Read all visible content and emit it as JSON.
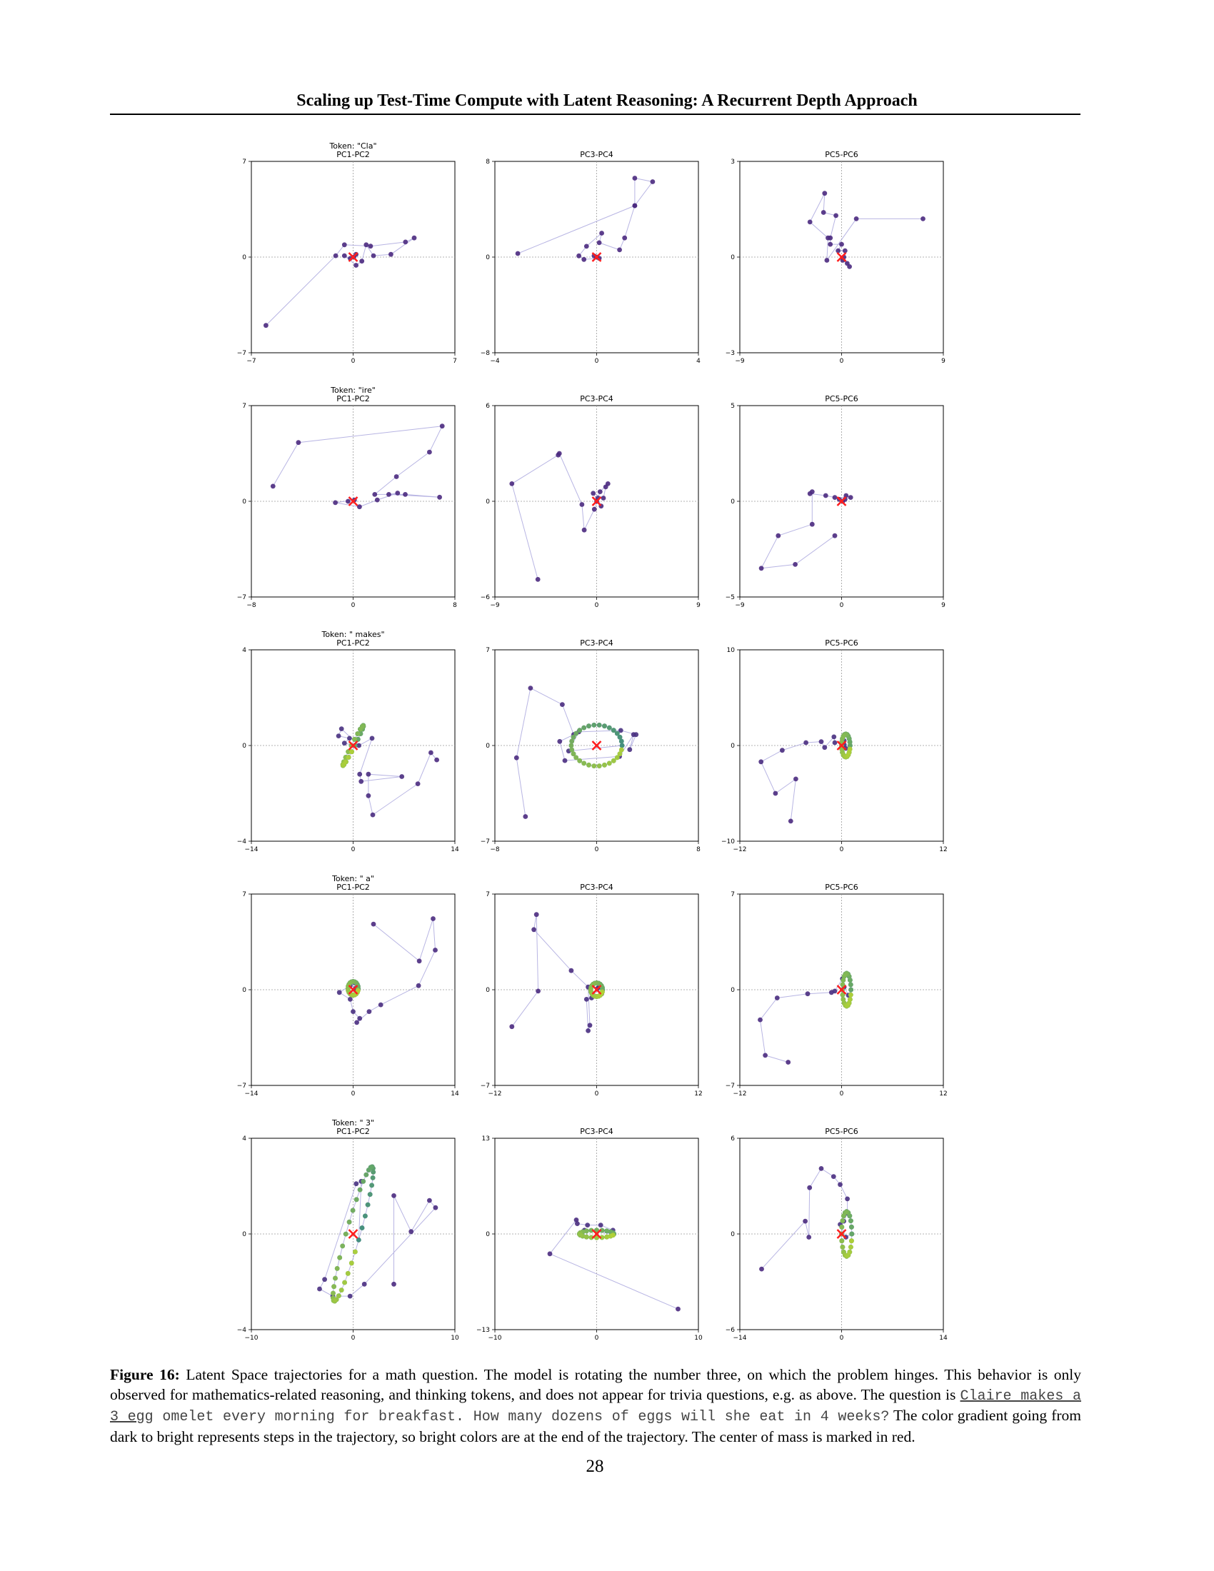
{
  "header": {
    "title": "Scaling up Test-Time Compute with Latent Reasoning: A Recurrent Depth Approach"
  },
  "colors": {
    "line": "#a6a3dc",
    "early": "#4b2a80",
    "late": "#b5d334",
    "center": "#ff1e1e",
    "grid": "#9a9a9a"
  },
  "chart_data": [
    {
      "type": "scatter",
      "title": "Token: \"Cla\"\nPC1-PC2",
      "xlim": [
        -7,
        7
      ],
      "ylim": [
        -7,
        7
      ],
      "xticks": [
        "−7",
        "0",
        "7"
      ],
      "yticks": [
        "−7",
        "0",
        "7"
      ],
      "center": [
        0,
        0
      ],
      "trajectory": [
        [
          -6,
          -5
        ],
        [
          -1.2,
          0.1
        ],
        [
          -0.6,
          0.9
        ],
        [
          1.2,
          0.8
        ],
        [
          3.6,
          1.1
        ],
        [
          4.2,
          1.4
        ],
        [
          2.6,
          0.2
        ],
        [
          1.4,
          0.1
        ],
        [
          0.9,
          0.9
        ],
        [
          0.6,
          -0.3
        ],
        [
          0.2,
          -0.6
        ],
        [
          -0.6,
          0.1
        ],
        [
          -0.2,
          -0.1
        ],
        [
          0.2,
          0.2
        ],
        [
          0.05,
          0.0
        ]
      ]
    },
    {
      "type": "scatter",
      "title": "PC3-PC4",
      "xlim": [
        -4,
        4
      ],
      "ylim": [
        -8,
        8
      ],
      "xticks": [
        "−4",
        "0",
        "4"
      ],
      "yticks": [
        "−8",
        "0",
        "8"
      ],
      "center": [
        0,
        0
      ],
      "trajectory": [
        [
          -3.1,
          0.3
        ],
        [
          1.5,
          4.3
        ],
        [
          1.5,
          6.6
        ],
        [
          2.2,
          6.3
        ],
        [
          1.5,
          4.3
        ],
        [
          1.1,
          1.6
        ],
        [
          0.9,
          0.6
        ],
        [
          0.1,
          1.2
        ],
        [
          0.2,
          2.0
        ],
        [
          -0.4,
          0.9
        ],
        [
          -0.7,
          0.1
        ],
        [
          -0.5,
          -0.2
        ],
        [
          0.1,
          -0.1
        ],
        [
          -0.1,
          0.1
        ],
        [
          0.0,
          0.0
        ]
      ]
    },
    {
      "type": "scatter",
      "title": "PC5-PC6",
      "xlim": [
        -9,
        9
      ],
      "ylim": [
        -3,
        3
      ],
      "xticks": [
        "−9",
        "0",
        "9"
      ],
      "yticks": [
        "−3",
        "0",
        "3"
      ],
      "center": [
        0,
        0
      ],
      "trajectory": [
        [
          7.2,
          1.2
        ],
        [
          1.3,
          1.2
        ],
        [
          -1.3,
          -0.1
        ],
        [
          -1.2,
          0.6
        ],
        [
          -2.8,
          1.1
        ],
        [
          -1.5,
          2.0
        ],
        [
          -1.6,
          1.4
        ],
        [
          -0.5,
          1.3
        ],
        [
          -1.0,
          0.6
        ],
        [
          -1.0,
          0.4
        ],
        [
          0.0,
          0.4
        ],
        [
          -0.3,
          0.2
        ],
        [
          0.3,
          0.2
        ],
        [
          0.1,
          -0.1
        ],
        [
          0.5,
          -0.2
        ],
        [
          0.7,
          -0.3
        ],
        [
          0.2,
          0.0
        ]
      ]
    },
    {
      "type": "scatter",
      "title": "Token: \"ire\"\nPC1-PC2",
      "xlim": [
        -8,
        8
      ],
      "ylim": [
        -7,
        7
      ],
      "xticks": [
        "−8",
        "0",
        "8"
      ],
      "yticks": [
        "−7",
        "0",
        "7"
      ],
      "center": [
        0,
        0
      ],
      "trajectory": [
        [
          -6.3,
          1.1
        ],
        [
          -4.3,
          4.3
        ],
        [
          7.0,
          5.5
        ],
        [
          6.0,
          3.6
        ],
        [
          3.4,
          1.8
        ],
        [
          1.7,
          0.5
        ],
        [
          4.1,
          0.5
        ],
        [
          6.8,
          0.3
        ],
        [
          2.8,
          0.5
        ],
        [
          3.5,
          0.6
        ],
        [
          1.9,
          0.1
        ],
        [
          0.5,
          -0.4
        ],
        [
          -1.4,
          -0.1
        ],
        [
          0.1,
          0.1
        ],
        [
          -0.4,
          0.0
        ]
      ]
    },
    {
      "type": "scatter",
      "title": "PC3-PC4",
      "xlim": [
        -9,
        9
      ],
      "ylim": [
        -6,
        6
      ],
      "xticks": [
        "−9",
        "0",
        "9"
      ],
      "yticks": [
        "−6",
        "0",
        "6"
      ],
      "center": [
        0,
        0
      ],
      "trajectory": [
        [
          -5.2,
          -4.9
        ],
        [
          -7.5,
          1.1
        ],
        [
          -3.4,
          2.9
        ],
        [
          -3.3,
          3.0
        ],
        [
          -1.3,
          -0.2
        ],
        [
          -1.1,
          -1.8
        ],
        [
          -0.2,
          -0.5
        ],
        [
          0.3,
          0.6
        ],
        [
          1.0,
          1.1
        ],
        [
          0.8,
          0.9
        ],
        [
          0.6,
          0.2
        ],
        [
          -0.3,
          0.5
        ],
        [
          0.4,
          -0.3
        ],
        [
          0.1,
          0.2
        ],
        [
          0.0,
          0.0
        ]
      ]
    },
    {
      "type": "scatter",
      "title": "PC5-PC6",
      "xlim": [
        -9,
        9
      ],
      "ylim": [
        -5,
        5
      ],
      "xticks": [
        "−9",
        "0",
        "9"
      ],
      "yticks": [
        "−5",
        "0",
        "5"
      ],
      "center": [
        0,
        0
      ],
      "trajectory": [
        [
          -0.6,
          -1.8
        ],
        [
          -4.1,
          -3.3
        ],
        [
          -7.1,
          -3.5
        ],
        [
          -5.6,
          -1.8
        ],
        [
          -2.6,
          -1.2
        ],
        [
          -2.6,
          0.5
        ],
        [
          -2.8,
          0.4
        ],
        [
          -1.4,
          0.3
        ],
        [
          -0.6,
          0.2
        ],
        [
          -0.2,
          0.1
        ],
        [
          0.4,
          0.3
        ],
        [
          0.8,
          0.2
        ],
        [
          0.3,
          0.1
        ],
        [
          0.1,
          0.0
        ]
      ]
    },
    {
      "type": "scatter",
      "title": "Token: \" makes\"\nPC1-PC2",
      "xlim": [
        -14,
        14
      ],
      "ylim": [
        -4,
        4
      ],
      "xticks": [
        "−14",
        "0",
        "14"
      ],
      "yticks": [
        "−4",
        "0",
        "4"
      ],
      "center": [
        0,
        0
      ],
      "trajectory": [
        [
          11.5,
          -0.6
        ],
        [
          10.7,
          -0.3
        ],
        [
          8.9,
          -1.6
        ],
        [
          2.7,
          -2.9
        ],
        [
          2.1,
          -2.1
        ],
        [
          2.1,
          -1.2
        ],
        [
          6.7,
          -1.3
        ],
        [
          1.1,
          -1.5
        ],
        [
          0.9,
          -1.2
        ],
        [
          2.6,
          0.3
        ],
        [
          0.8,
          0.0
        ],
        [
          -1.6,
          0.7
        ],
        [
          -2.0,
          0.4
        ],
        [
          -0.5,
          0.3
        ],
        [
          -1.2,
          0.1
        ]
      ],
      "orbit": {
        "cx": 0,
        "cy": 0,
        "rx": 0.9,
        "ry": 2.0,
        "rot": 0,
        "kind": "segment",
        "len": 2.2,
        "angle": -58
      }
    },
    {
      "type": "scatter",
      "title": "PC3-PC4",
      "xlim": [
        -8,
        8
      ],
      "ylim": [
        -7,
        7
      ],
      "xticks": [
        "−8",
        "0",
        "8"
      ],
      "yticks": [
        "−7",
        "0",
        "7"
      ],
      "center": [
        0,
        0
      ],
      "trajectory": [
        [
          -5.6,
          -5.2
        ],
        [
          -6.3,
          -0.9
        ],
        [
          -5.2,
          4.2
        ],
        [
          -2.7,
          3.0
        ],
        [
          -1.8,
          0.8
        ],
        [
          -2.9,
          0.3
        ],
        [
          -2.5,
          -1.1
        ],
        [
          1.8,
          -0.8
        ],
        [
          2.9,
          0.8
        ],
        [
          2.6,
          -0.3
        ],
        [
          3.1,
          0.8
        ],
        [
          1.9,
          1.1
        ],
        [
          -1.4,
          1.0
        ],
        [
          -2.2,
          -0.4
        ]
      ],
      "orbit": {
        "cx": 0,
        "cy": 0,
        "rx": 2.0,
        "ry": 1.5,
        "rot": 0,
        "kind": "ring"
      }
    },
    {
      "type": "scatter",
      "title": "PC5-PC6",
      "xlim": [
        -12,
        12
      ],
      "ylim": [
        -10,
        10
      ],
      "xticks": [
        "−12",
        "0",
        "12"
      ],
      "yticks": [
        "−10",
        "0",
        "10"
      ],
      "center": [
        0,
        0
      ],
      "trajectory": [
        [
          -6.0,
          -7.9
        ],
        [
          -5.4,
          -3.5
        ],
        [
          -7.8,
          -5.0
        ],
        [
          -9.5,
          -1.7
        ],
        [
          -7.0,
          -0.5
        ],
        [
          -4.2,
          0.3
        ],
        [
          -2.4,
          0.4
        ],
        [
          -2.0,
          -0.2
        ],
        [
          -0.9,
          0.9
        ],
        [
          -0.8,
          0.3
        ],
        [
          0.3,
          0.5
        ],
        [
          0.5,
          -0.3
        ],
        [
          0.3,
          0.1
        ]
      ],
      "orbit": {
        "cx": 0.5,
        "cy": 0,
        "rx": 0.5,
        "ry": 1.2,
        "rot": 0,
        "kind": "blob"
      }
    },
    {
      "type": "scatter",
      "title": "Token: \" a\"\nPC1-PC2",
      "xlim": [
        -14,
        14
      ],
      "ylim": [
        -7,
        7
      ],
      "xticks": [
        "−14",
        "0",
        "14"
      ],
      "yticks": [
        "−7",
        "0",
        "7"
      ],
      "center": [
        0,
        0
      ],
      "trajectory": [
        [
          2.8,
          4.8
        ],
        [
          9.1,
          2.1
        ],
        [
          11.0,
          5.2
        ],
        [
          11.3,
          2.9
        ],
        [
          9.0,
          0.3
        ],
        [
          3.8,
          -1.1
        ],
        [
          2.2,
          -1.6
        ],
        [
          0.5,
          -2.4
        ],
        [
          0.9,
          -2.1
        ],
        [
          0.0,
          -1.6
        ],
        [
          -0.4,
          -0.7
        ],
        [
          -1.9,
          -0.2
        ],
        [
          -0.4,
          0.3
        ],
        [
          0.2,
          0.5
        ],
        [
          0.3,
          0.1
        ]
      ],
      "orbit": {
        "cx": 0,
        "cy": 0.1,
        "rx": 0.7,
        "ry": 0.5,
        "rot": 0,
        "kind": "blob"
      }
    },
    {
      "type": "scatter",
      "title": "PC3-PC4",
      "xlim": [
        -12,
        12
      ],
      "ylim": [
        -7,
        7
      ],
      "xticks": [
        "−12",
        "0",
        "12"
      ],
      "yticks": [
        "−7",
        "0",
        "7"
      ],
      "center": [
        0,
        0
      ],
      "trajectory": [
        [
          -10.0,
          -2.7
        ],
        [
          -6.9,
          -0.1
        ],
        [
          -7.1,
          5.5
        ],
        [
          -7.4,
          4.4
        ],
        [
          -3.0,
          1.4
        ],
        [
          -1.0,
          0.2
        ],
        [
          -0.8,
          -2.6
        ],
        [
          -1.0,
          -3.0
        ],
        [
          -1.2,
          -0.7
        ],
        [
          -0.6,
          -0.6
        ],
        [
          0.3,
          0.2
        ],
        [
          0.6,
          -0.3
        ],
        [
          0.1,
          0.1
        ]
      ],
      "orbit": {
        "cx": 0,
        "cy": 0,
        "rx": 0.7,
        "ry": 0.5,
        "rot": 0,
        "kind": "blob"
      }
    },
    {
      "type": "scatter",
      "title": "PC5-PC6",
      "xlim": [
        -12,
        12
      ],
      "ylim": [
        -7,
        7
      ],
      "xticks": [
        "−12",
        "0",
        "12"
      ],
      "yticks": [
        "−7",
        "0",
        "7"
      ],
      "center": [
        0,
        0
      ],
      "trajectory": [
        [
          -6.3,
          -5.3
        ],
        [
          -9.0,
          -4.8
        ],
        [
          -9.6,
          -2.2
        ],
        [
          -7.6,
          -0.6
        ],
        [
          -4.0,
          -0.3
        ],
        [
          -1.2,
          -0.2
        ],
        [
          -0.8,
          -0.1
        ],
        [
          0.1,
          0.8
        ],
        [
          0.3,
          0.2
        ],
        [
          0.8,
          -0.4
        ]
      ],
      "orbit": {
        "cx": 0.6,
        "cy": 0,
        "rx": 0.5,
        "ry": 1.2,
        "rot": 0,
        "kind": "blob"
      }
    },
    {
      "type": "scatter",
      "title": "Token: \" 3\"\nPC1-PC2",
      "xlim": [
        -10,
        10
      ],
      "ylim": [
        -4,
        4
      ],
      "xticks": [
        "−10",
        "0",
        "10"
      ],
      "yticks": [
        "−4",
        "0",
        "4"
      ],
      "center": [
        0,
        0
      ],
      "trajectory": [
        [
          4.0,
          -2.1
        ],
        [
          4.0,
          1.6
        ],
        [
          5.7,
          0.1
        ],
        [
          7.5,
          1.4
        ],
        [
          8.1,
          1.1
        ],
        [
          1.1,
          -2.1
        ],
        [
          -0.3,
          -2.6
        ],
        [
          -2.0,
          -2.6
        ],
        [
          -3.3,
          -2.3
        ],
        [
          -2.8,
          -1.9
        ],
        [
          0.3,
          2.1
        ],
        [
          0.8,
          2.2
        ]
      ],
      "orbit": {
        "cx": 0,
        "cy": 0,
        "rx": 0.9,
        "ry": 2.9,
        "rot": 0,
        "kind": "tilted"
      }
    },
    {
      "type": "scatter",
      "title": "PC3-PC4",
      "xlim": [
        -10,
        10
      ],
      "ylim": [
        -13,
        13
      ],
      "xticks": [
        "−10",
        "0",
        "10"
      ],
      "yticks": [
        "−13",
        "0",
        "13"
      ],
      "center": [
        0,
        0
      ],
      "trajectory": [
        [
          8.0,
          -10.2
        ],
        [
          -4.6,
          -2.7
        ],
        [
          -2.0,
          1.9
        ],
        [
          -1.9,
          1.4
        ],
        [
          -0.9,
          1.2
        ],
        [
          0.4,
          1.2
        ],
        [
          1.6,
          0.5
        ],
        [
          -1.2,
          0.5
        ]
      ],
      "orbit": {
        "cx": 0,
        "cy": 0,
        "rx": 1.7,
        "ry": 0.5,
        "rot": 0,
        "kind": "blob"
      }
    },
    {
      "type": "scatter",
      "title": "PC5-PC6",
      "xlim": [
        -14,
        14
      ],
      "ylim": [
        -6,
        6
      ],
      "xticks": [
        "−14",
        "0",
        "14"
      ],
      "yticks": [
        "−6",
        "0",
        "6"
      ],
      "center": [
        0,
        0
      ],
      "trajectory": [
        [
          -11.0,
          -2.2
        ],
        [
          -5.0,
          0.8
        ],
        [
          -4.5,
          -0.2
        ],
        [
          -4.4,
          2.9
        ],
        [
          -2.8,
          4.1
        ],
        [
          -1.1,
          3.6
        ],
        [
          -0.2,
          3.1
        ],
        [
          0.8,
          2.2
        ],
        [
          0.8,
          1.3
        ],
        [
          0.3,
          0.8
        ],
        [
          -0.2,
          0.6
        ],
        [
          0.6,
          -0.2
        ]
      ],
      "orbit": {
        "cx": 0.7,
        "cy": 0,
        "rx": 0.7,
        "ry": 1.4,
        "rot": 0,
        "kind": "blob"
      }
    }
  ],
  "caption": {
    "label": "Figure 16:",
    "text1": " Latent Space trajectories for a math question. The model is rotating the number three, on which the problem hinges. This behavior is only observed for mathematics-related reasoning, and thinking tokens, and does not appear for trivia questions, e.g. as above. The question is ",
    "question_underlined": "Claire makes a 3 egg",
    "question_rest": " omelet every morning for breakfast. How many dozens of eggs will she eat in 4 weeks?",
    "text2": " The color gradient going from dark to bright represents steps in the trajectory, so bright colors are at the end of the trajectory. The center of mass is marked in red."
  },
  "page_number": "28"
}
